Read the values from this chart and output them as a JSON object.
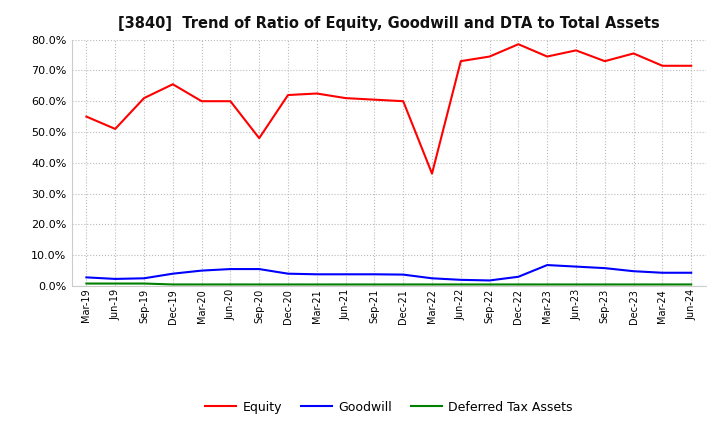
{
  "title": "[3840]  Trend of Ratio of Equity, Goodwill and DTA to Total Assets",
  "x_labels": [
    "Mar-19",
    "Jun-19",
    "Sep-19",
    "Dec-19",
    "Mar-20",
    "Jun-20",
    "Sep-20",
    "Dec-20",
    "Mar-21",
    "Jun-21",
    "Sep-21",
    "Dec-21",
    "Mar-22",
    "Jun-22",
    "Sep-22",
    "Dec-22",
    "Mar-23",
    "Jun-23",
    "Sep-23",
    "Dec-23",
    "Mar-24",
    "Jun-24"
  ],
  "equity": [
    0.55,
    0.51,
    0.61,
    0.655,
    0.6,
    0.6,
    0.48,
    0.62,
    0.625,
    0.61,
    0.605,
    0.6,
    0.365,
    0.73,
    0.745,
    0.785,
    0.745,
    0.765,
    0.73,
    0.755,
    0.715,
    0.715
  ],
  "goodwill": [
    0.028,
    0.023,
    0.025,
    0.04,
    0.05,
    0.055,
    0.055,
    0.04,
    0.038,
    0.038,
    0.038,
    0.037,
    0.025,
    0.02,
    0.018,
    0.03,
    0.068,
    0.063,
    0.058,
    0.048,
    0.043,
    0.043
  ],
  "dta": [
    0.008,
    0.008,
    0.008,
    0.005,
    0.005,
    0.005,
    0.005,
    0.005,
    0.005,
    0.005,
    0.005,
    0.005,
    0.005,
    0.005,
    0.005,
    0.005,
    0.005,
    0.005,
    0.005,
    0.005,
    0.005,
    0.005
  ],
  "equity_color": "#FF0000",
  "goodwill_color": "#0000FF",
  "dta_color": "#008000",
  "ylim": [
    0.0,
    0.8
  ],
  "yticks": [
    0.0,
    0.1,
    0.2,
    0.3,
    0.4,
    0.5,
    0.6,
    0.7,
    0.8
  ],
  "legend_labels": [
    "Equity",
    "Goodwill",
    "Deferred Tax Assets"
  ],
  "background_color": "#FFFFFF",
  "grid_color": "#BBBBBB"
}
